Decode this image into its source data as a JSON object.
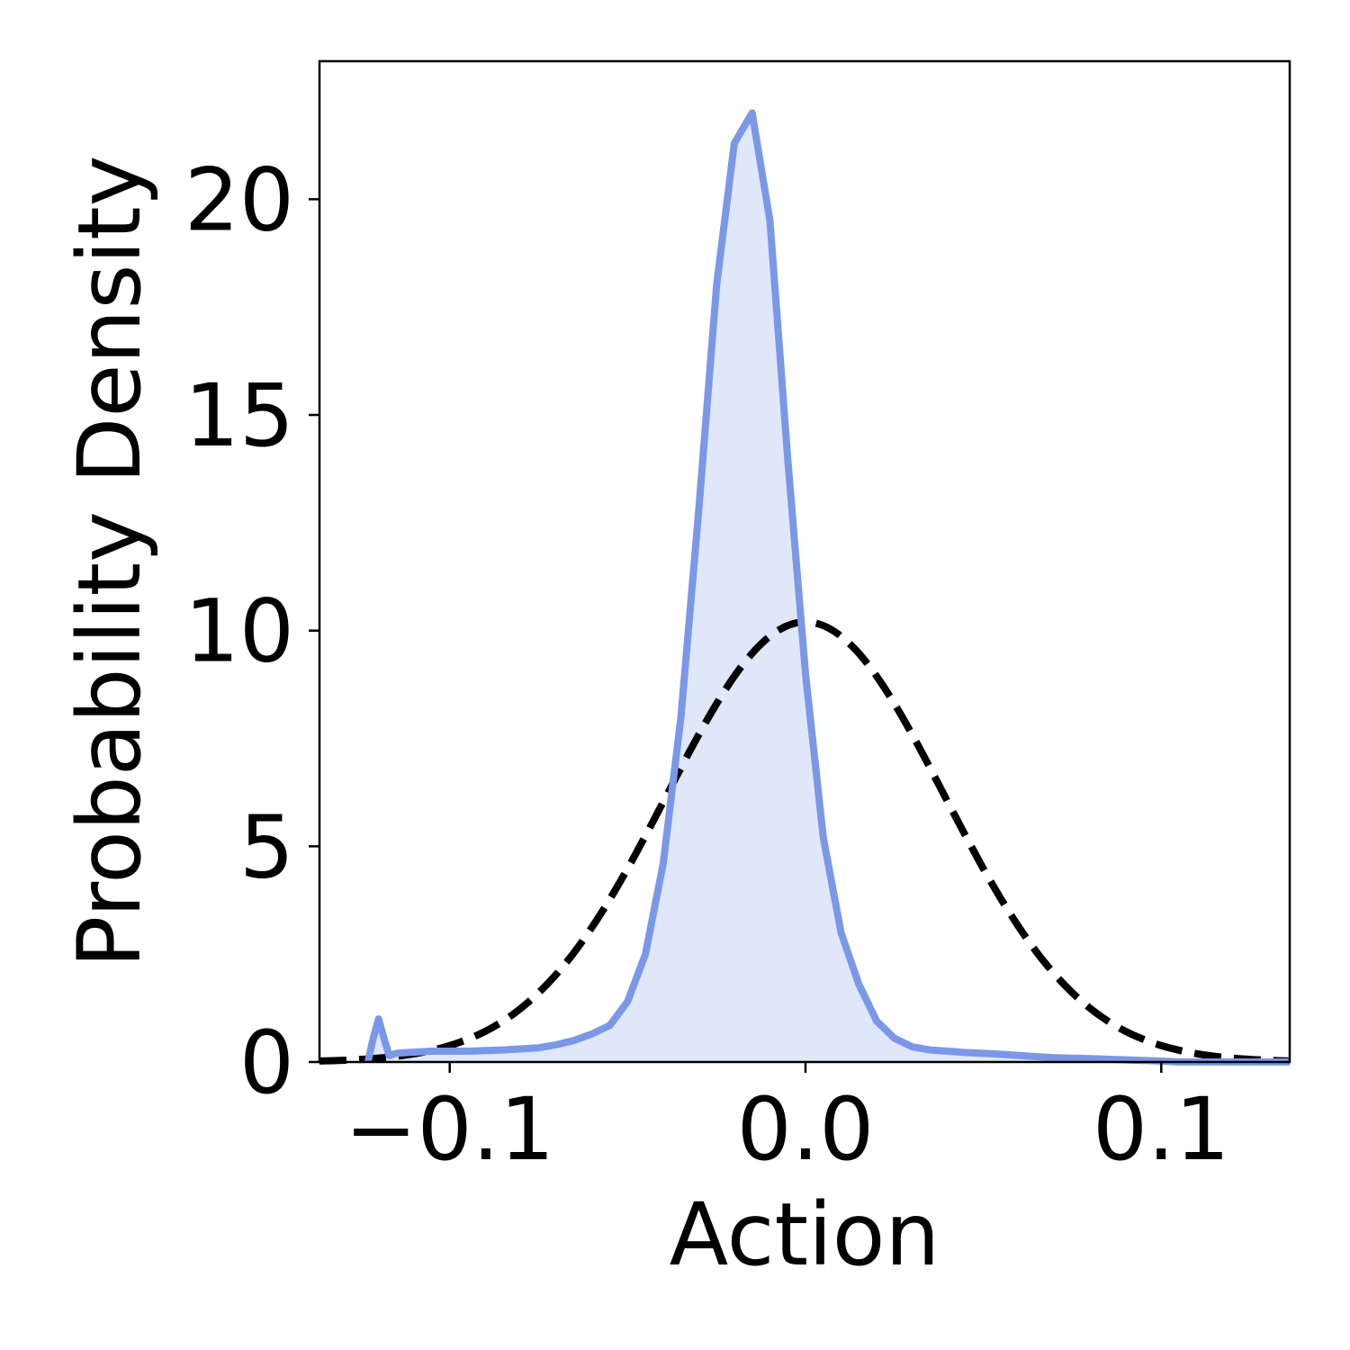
{
  "chart_data": {
    "type": "area",
    "title": "",
    "xlabel": "Action",
    "ylabel": "Probability Density",
    "xlim": [
      -0.1366,
      0.1361
    ],
    "ylim": [
      0,
      23.2
    ],
    "xticks": [
      -0.1,
      0.0,
      0.1
    ],
    "xtick_labels": [
      "−0.1",
      "0.0",
      "0.1"
    ],
    "yticks": [
      0,
      5,
      10,
      15,
      20
    ],
    "ytick_labels": [
      "0",
      "5",
      "10",
      "15",
      "20"
    ],
    "grid": false,
    "legend": "none",
    "colors": {
      "kde_line": "#7b97e8",
      "kde_fill": "#dfe7f9",
      "normal_line": "#000000"
    },
    "series": [
      {
        "style": "solid-filled",
        "x": [
          -0.123,
          -0.1215,
          -0.12,
          -0.1185,
          -0.117,
          -0.115,
          -0.112,
          -0.105,
          -0.095,
          -0.085,
          -0.075,
          -0.07,
          -0.065,
          -0.06,
          -0.055,
          -0.05,
          -0.045,
          -0.04,
          -0.035,
          -0.03,
          -0.025,
          -0.02,
          -0.015,
          -0.01,
          -0.005,
          0.0,
          0.005,
          0.01,
          0.015,
          0.02,
          0.025,
          0.03,
          0.035,
          0.04,
          0.045,
          0.05,
          0.055,
          0.06,
          0.07,
          0.08,
          0.09,
          0.1,
          0.105,
          0.11,
          0.1125,
          0.114,
          0.1155,
          0.117,
          0.1185,
          0.12,
          0.122,
          0.125,
          0.13,
          0.136
        ],
        "y": [
          0.0,
          0.55,
          1.0,
          0.55,
          0.15,
          0.2,
          0.22,
          0.25,
          0.25,
          0.28,
          0.33,
          0.4,
          0.5,
          0.65,
          0.85,
          1.4,
          2.5,
          4.6,
          8.0,
          12.8,
          18.0,
          21.3,
          22.0,
          19.5,
          14.0,
          9.0,
          5.2,
          3.0,
          1.8,
          0.95,
          0.55,
          0.35,
          0.28,
          0.25,
          0.22,
          0.2,
          0.18,
          0.15,
          0.1,
          0.08,
          0.05,
          0.02,
          0.0,
          0.0,
          0.0,
          0.0,
          0.0,
          0.0,
          0.0,
          0.0,
          0.0,
          0.0,
          0.0,
          0.0
        ]
      },
      {
        "style": "dashed",
        "mean": 0.0,
        "std": 0.039,
        "x": [
          -0.1366,
          -0.13,
          -0.12,
          -0.11,
          -0.1,
          -0.09,
          -0.08,
          -0.07,
          -0.06,
          -0.05,
          -0.04,
          -0.03,
          -0.02,
          -0.01,
          0.0,
          0.01,
          0.02,
          0.03,
          0.04,
          0.05,
          0.06,
          0.07,
          0.08,
          0.09,
          0.1,
          0.11,
          0.12,
          0.13,
          0.1361
        ],
        "y": [
          0.02,
          0.04,
          0.09,
          0.19,
          0.38,
          0.72,
          1.25,
          2.03,
          3.07,
          4.33,
          5.69,
          6.98,
          8.02,
          8.7,
          10.2,
          8.7,
          8.02,
          6.98,
          5.69,
          4.33,
          3.07,
          2.03,
          1.25,
          0.72,
          0.38,
          0.19,
          0.09,
          0.04,
          0.02
        ]
      }
    ]
  }
}
